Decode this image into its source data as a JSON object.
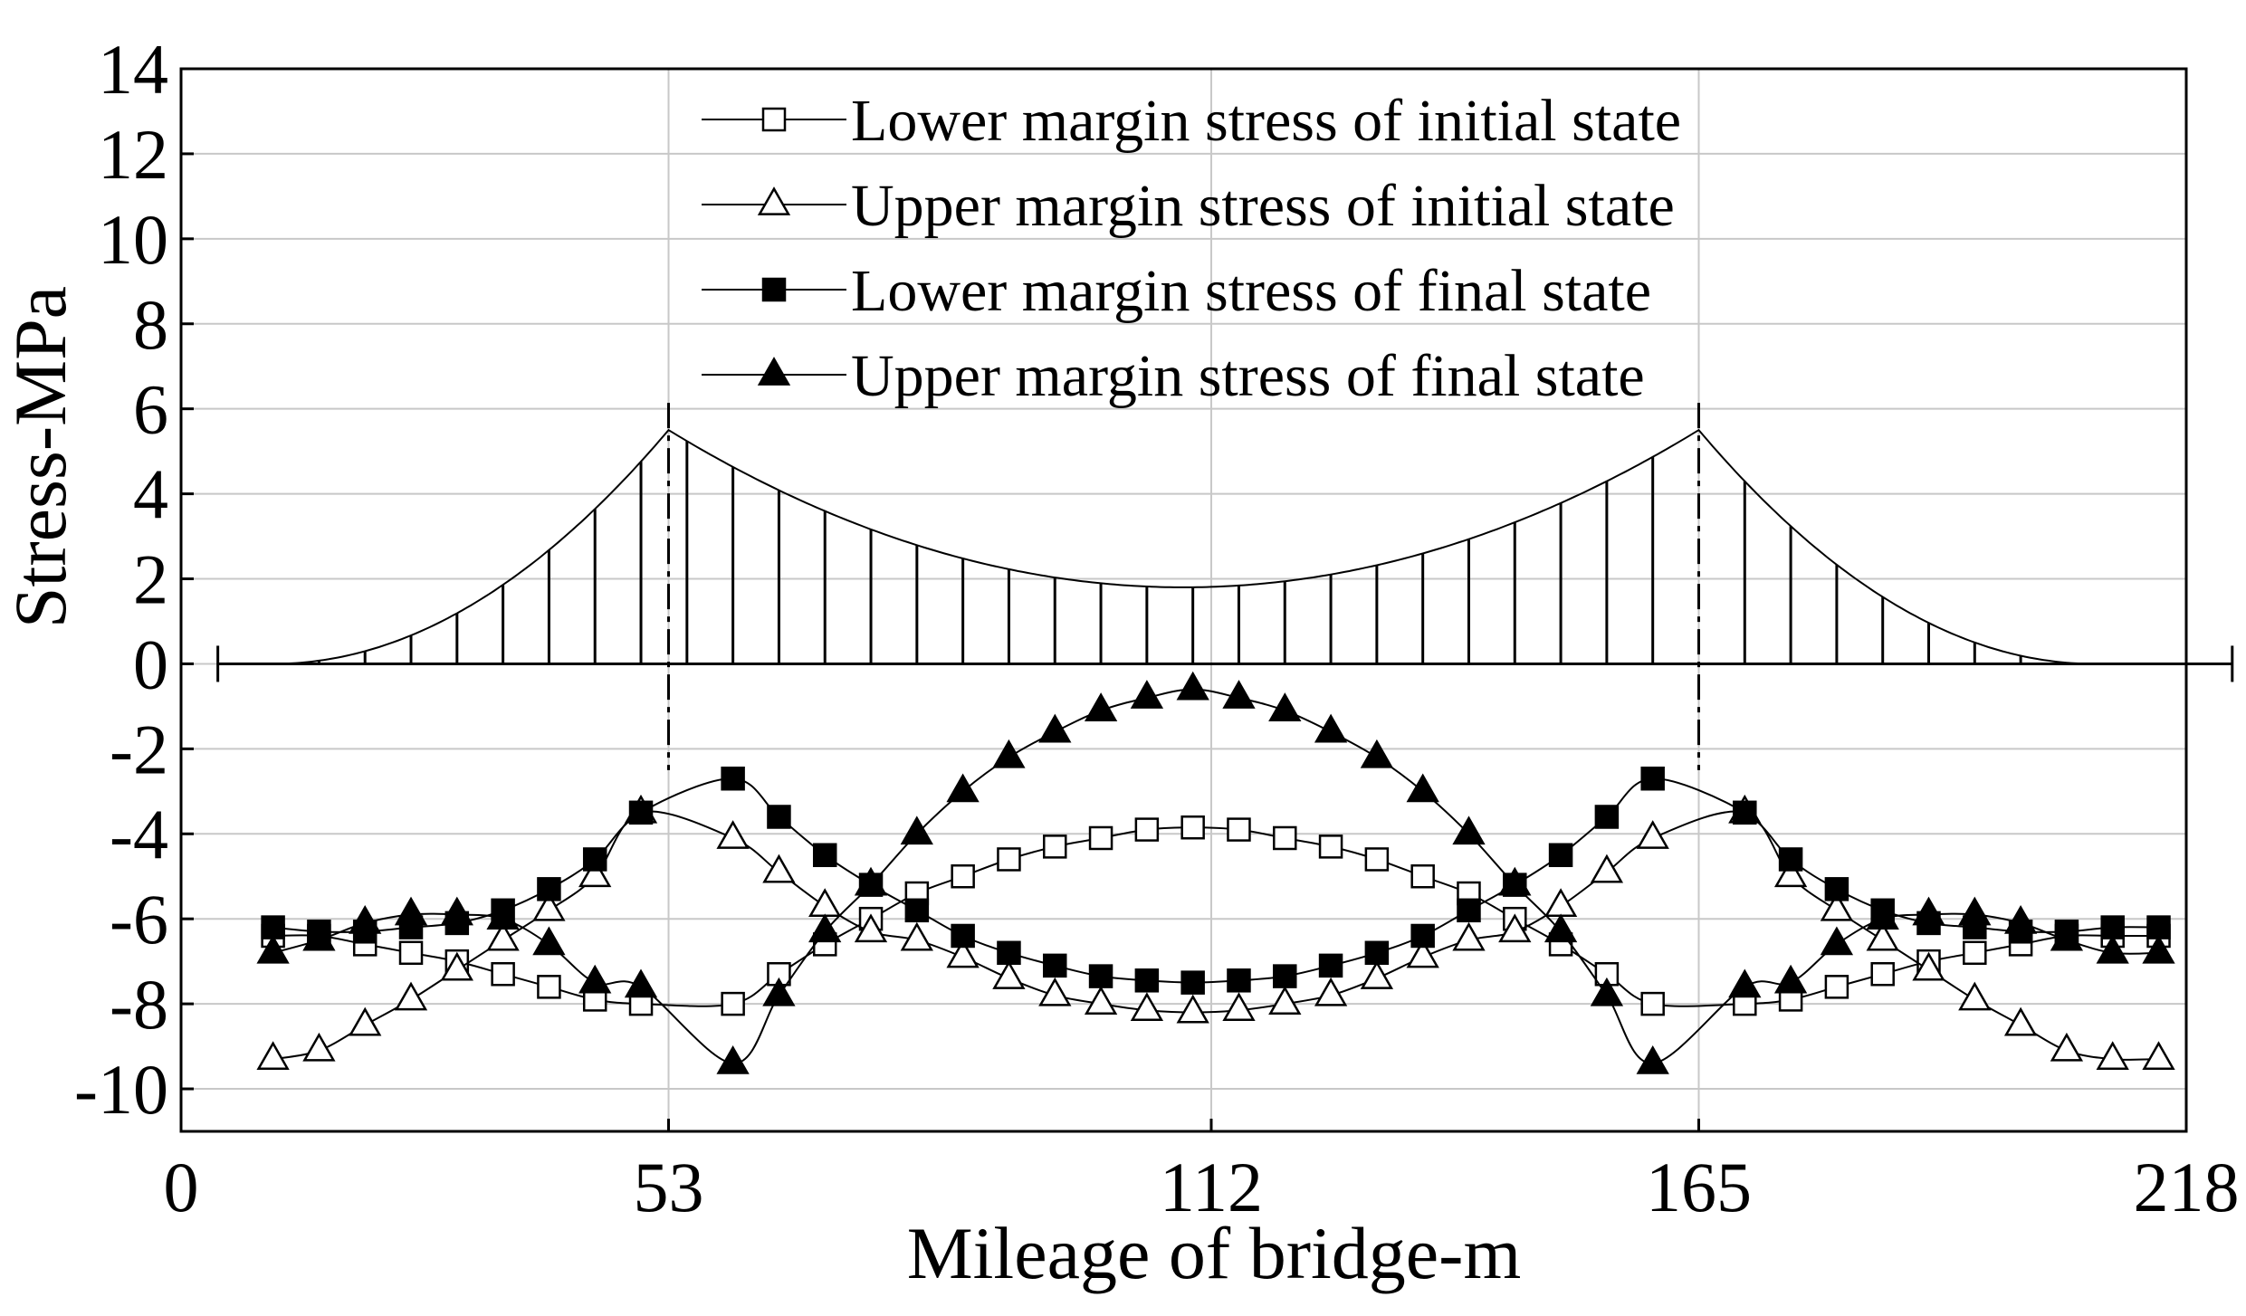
{
  "chart_data": {
    "type": "line",
    "title": "",
    "xlabel": "Mileage of bridge-m",
    "ylabel": "Stress-MPa",
    "xlim": [
      0,
      218
    ],
    "ylim": [
      -11,
      14
    ],
    "xticks": [
      0,
      53,
      112,
      165,
      218
    ],
    "yticks": [
      -10,
      -8,
      -6,
      -4,
      -2,
      0,
      2,
      4,
      6,
      8,
      10,
      12,
      14
    ],
    "xtick_labels": [
      "0",
      "53",
      "112",
      "165",
      "218"
    ],
    "ytick_labels": [
      "-10",
      "-8",
      "-6",
      "-4",
      "-2",
      "0",
      "2",
      "4",
      "6",
      "8",
      "10",
      "12",
      "14"
    ],
    "grid": true,
    "legend_position": "top-center",
    "x": [
      10,
      15,
      20,
      25,
      30,
      35,
      40,
      45,
      50,
      60,
      65,
      70,
      75,
      80,
      85,
      90,
      95,
      100,
      105,
      110,
      115,
      120,
      125,
      130,
      135,
      140,
      145,
      150,
      155,
      160,
      170,
      175,
      180,
      185,
      190,
      195,
      200,
      205,
      210,
      215
    ],
    "series": [
      {
        "name": "Lower margin stress of initial state",
        "marker": "square-open",
        "values": [
          -6.4,
          -6.4,
          -6.6,
          -6.8,
          -7.0,
          -7.3,
          -7.6,
          -7.9,
          -8.0,
          -8.0,
          -7.3,
          -6.6,
          -6.0,
          -5.4,
          -5.0,
          -4.6,
          -4.3,
          -4.1,
          -3.9,
          -3.85,
          -3.9,
          -4.1,
          -4.3,
          -4.6,
          -5.0,
          -5.4,
          -6.0,
          -6.6,
          -7.3,
          -8.0,
          -8.0,
          -7.9,
          -7.6,
          -7.3,
          -7.0,
          -6.8,
          -6.6,
          -6.4,
          -6.4,
          -6.4
        ]
      },
      {
        "name": "Upper margin stress of initial state",
        "marker": "triangle-open",
        "values": [
          -9.3,
          -9.1,
          -8.5,
          -7.9,
          -7.2,
          -6.5,
          -5.8,
          -5.0,
          -3.5,
          -4.1,
          -4.9,
          -5.7,
          -6.3,
          -6.5,
          -6.9,
          -7.4,
          -7.8,
          -8.0,
          -8.15,
          -8.2,
          -8.15,
          -8.0,
          -7.8,
          -7.4,
          -6.9,
          -6.5,
          -6.3,
          -5.7,
          -4.9,
          -4.1,
          -3.5,
          -5.0,
          -5.8,
          -6.5,
          -7.2,
          -7.9,
          -8.5,
          -9.1,
          -9.3,
          -9.3
        ]
      },
      {
        "name": "Lower margin stress of final state",
        "marker": "square-filled",
        "values": [
          -6.2,
          -6.3,
          -6.3,
          -6.2,
          -6.1,
          -5.8,
          -5.3,
          -4.6,
          -3.5,
          -2.7,
          -3.6,
          -4.5,
          -5.2,
          -5.8,
          -6.4,
          -6.8,
          -7.1,
          -7.35,
          -7.45,
          -7.5,
          -7.45,
          -7.35,
          -7.1,
          -6.8,
          -6.4,
          -5.8,
          -5.2,
          -4.5,
          -3.6,
          -2.7,
          -3.5,
          -4.6,
          -5.3,
          -5.8,
          -6.1,
          -6.2,
          -6.3,
          -6.3,
          -6.2,
          -6.2
        ]
      },
      {
        "name": "Upper margin stress of final state",
        "marker": "triangle-filled",
        "values": [
          -6.8,
          -6.5,
          -6.1,
          -5.9,
          -5.9,
          -6.0,
          -6.6,
          -7.5,
          -7.6,
          -9.4,
          -7.8,
          -6.3,
          -5.2,
          -4.0,
          -3.0,
          -2.2,
          -1.6,
          -1.1,
          -0.8,
          -0.6,
          -0.8,
          -1.1,
          -1.6,
          -2.2,
          -3.0,
          -4.0,
          -5.2,
          -6.3,
          -7.8,
          -9.4,
          -7.6,
          -7.5,
          -6.6,
          -6.0,
          -5.9,
          -5.9,
          -6.1,
          -6.5,
          -6.8,
          -6.8
        ]
      }
    ],
    "bridge_outline": {
      "towers_at": [
        53,
        165
      ],
      "tower_top_stress": 5.5,
      "midspan_cable_sag_stress": 1.8,
      "deck_stress": 0,
      "deck_range": [
        4,
        223
      ]
    }
  }
}
